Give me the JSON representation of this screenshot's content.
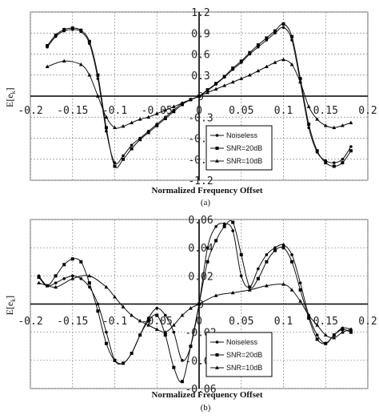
{
  "chart_data": [
    {
      "panel": "top",
      "type": "line",
      "caption": "(a)",
      "xlabel": "Normalized Frequency Offset",
      "ylabel": "E[e",
      "ylabel_sub": "k",
      "ylabel_close": "]",
      "xlim": [
        -0.2,
        0.2
      ],
      "ylim": [
        -1.2,
        1.2
      ],
      "x_ticks": [
        "-0.2",
        "-0.15",
        "-0.1",
        "-0.05",
        "0",
        "0.05",
        "0.1",
        "0.15",
        "0.2"
      ],
      "y_ticks": [
        "1.2",
        "0.9",
        "0.6",
        "0.3",
        "0",
        "-0.3",
        "-0.6",
        "-0.9",
        "-1.2"
      ],
      "grid": true,
      "legend": "lower-right",
      "series": [
        {
          "name": "Noiseless",
          "marker": "circle",
          "x": [
            -0.18,
            -0.17,
            -0.16,
            -0.15,
            -0.14,
            -0.13,
            -0.12,
            -0.11,
            -0.1,
            -0.09,
            -0.08,
            -0.07,
            -0.06,
            -0.05,
            -0.04,
            -0.03,
            -0.02,
            -0.01,
            0,
            0.01,
            0.02,
            0.03,
            0.04,
            0.05,
            0.06,
            0.07,
            0.08,
            0.09,
            0.1,
            0.11,
            0.12,
            0.13,
            0.14,
            0.15,
            0.16,
            0.17,
            0.18
          ],
          "y": [
            0.7,
            0.85,
            0.93,
            0.95,
            0.92,
            0.75,
            0.25,
            -0.5,
            -0.95,
            -0.85,
            -0.7,
            -0.6,
            -0.5,
            -0.4,
            -0.3,
            -0.2,
            -0.1,
            -0.05,
            0,
            0.08,
            0.17,
            0.27,
            0.38,
            0.48,
            0.6,
            0.7,
            0.8,
            0.9,
            0.98,
            0.8,
            0.2,
            -0.45,
            -0.8,
            -0.92,
            -0.95,
            -0.9,
            -0.72
          ]
        },
        {
          "name": "SNR=20dB",
          "marker": "square",
          "x": [
            -0.18,
            -0.17,
            -0.16,
            -0.15,
            -0.14,
            -0.13,
            -0.12,
            -0.11,
            -0.1,
            -0.09,
            -0.08,
            -0.07,
            -0.06,
            -0.05,
            -0.04,
            -0.03,
            -0.02,
            -0.01,
            0,
            0.01,
            0.02,
            0.03,
            0.04,
            0.05,
            0.06,
            0.07,
            0.08,
            0.09,
            0.1,
            0.11,
            0.12,
            0.13,
            0.14,
            0.15,
            0.16,
            0.17,
            0.18
          ],
          "y": [
            0.72,
            0.87,
            0.95,
            0.97,
            0.94,
            0.78,
            0.3,
            -0.45,
            -1.0,
            -0.9,
            -0.75,
            -0.62,
            -0.52,
            -0.42,
            -0.32,
            -0.22,
            -0.12,
            -0.05,
            0,
            0.09,
            0.18,
            0.28,
            0.4,
            0.5,
            0.62,
            0.73,
            0.83,
            0.93,
            1.03,
            0.85,
            0.25,
            -0.4,
            -0.78,
            -0.95,
            -1.0,
            -0.95,
            -0.78
          ]
        },
        {
          "name": "SNR=10dB",
          "marker": "triangle",
          "x": [
            -0.18,
            -0.16,
            -0.14,
            -0.13,
            -0.12,
            -0.11,
            -0.1,
            -0.09,
            -0.08,
            -0.07,
            -0.06,
            -0.05,
            -0.04,
            -0.03,
            -0.02,
            -0.01,
            0,
            0.01,
            0.02,
            0.03,
            0.04,
            0.05,
            0.06,
            0.07,
            0.08,
            0.09,
            0.1,
            0.11,
            0.12,
            0.13,
            0.14,
            0.15,
            0.16,
            0.17,
            0.18
          ],
          "y": [
            0.42,
            0.5,
            0.45,
            0.3,
            0.0,
            -0.3,
            -0.45,
            -0.43,
            -0.38,
            -0.33,
            -0.3,
            -0.25,
            -0.2,
            -0.15,
            -0.1,
            -0.05,
            0,
            0.05,
            0.1,
            0.15,
            0.2,
            0.25,
            0.3,
            0.36,
            0.42,
            0.48,
            0.52,
            0.45,
            0.2,
            -0.15,
            -0.33,
            -0.42,
            -0.45,
            -0.42,
            -0.38
          ]
        }
      ]
    },
    {
      "panel": "bottom",
      "type": "line",
      "caption": "(b)",
      "xlabel": "Normalized Frequency Offset",
      "ylabel": "E[e",
      "ylabel_sub": "k",
      "ylabel_close": "]",
      "xlim": [
        -0.2,
        0.2
      ],
      "ylim": [
        -0.06,
        0.06
      ],
      "x_ticks": [
        "-0.2",
        "-0.15",
        "-0.1",
        "-0.05",
        "0",
        "0.05",
        "0.1",
        "0.15",
        "0.2"
      ],
      "y_ticks": [
        "0.06",
        "0.04",
        "0.02",
        "0",
        "-0.02",
        "-0.04",
        "-0.06"
      ],
      "grid": true,
      "legend": "lower-right",
      "series": [
        {
          "name": "Noiseless",
          "marker": "circle",
          "x": [
            -0.19,
            -0.18,
            -0.17,
            -0.16,
            -0.15,
            -0.14,
            -0.13,
            -0.12,
            -0.11,
            -0.1,
            -0.09,
            -0.08,
            -0.07,
            -0.06,
            -0.05,
            -0.04,
            -0.03,
            -0.02,
            -0.01,
            0,
            0.01,
            0.02,
            0.03,
            0.04,
            0.05,
            0.06,
            0.07,
            0.08,
            0.09,
            0.1,
            0.11,
            0.12,
            0.13,
            0.14,
            0.15,
            0.16,
            0.17,
            0.18
          ],
          "y": [
            0.02,
            0.013,
            0.015,
            0.018,
            0.02,
            0.018,
            0.012,
            0.0,
            -0.02,
            -0.04,
            -0.042,
            -0.035,
            -0.022,
            -0.01,
            -0.003,
            -0.008,
            -0.02,
            -0.04,
            -0.03,
            0.0,
            0.04,
            0.055,
            0.057,
            0.052,
            0.02,
            0.012,
            0.025,
            0.035,
            0.04,
            0.042,
            0.035,
            0.015,
            -0.008,
            -0.022,
            -0.028,
            -0.022,
            -0.017,
            -0.018
          ]
        },
        {
          "name": "SNR=20dB",
          "marker": "square",
          "x": [
            -0.19,
            -0.18,
            -0.17,
            -0.16,
            -0.15,
            -0.14,
            -0.13,
            -0.12,
            -0.11,
            -0.1,
            -0.09,
            -0.08,
            -0.07,
            -0.06,
            -0.05,
            -0.04,
            -0.03,
            -0.02,
            -0.01,
            0,
            0.01,
            0.02,
            0.03,
            0.04,
            0.05,
            0.06,
            0.07,
            0.08,
            0.09,
            0.1,
            0.11,
            0.12,
            0.13,
            0.14,
            0.15,
            0.16,
            0.17,
            0.18
          ],
          "y": [
            0.019,
            0.013,
            0.02,
            0.028,
            0.032,
            0.03,
            0.015,
            -0.005,
            -0.028,
            -0.04,
            -0.042,
            -0.035,
            -0.022,
            -0.012,
            -0.008,
            -0.022,
            -0.045,
            -0.055,
            -0.03,
            0.0,
            0.03,
            0.045,
            0.055,
            0.058,
            0.035,
            0.012,
            0.018,
            0.03,
            0.038,
            0.04,
            0.03,
            0.01,
            -0.01,
            -0.025,
            -0.028,
            -0.022,
            -0.018,
            -0.02
          ]
        },
        {
          "name": "SNR=10dB",
          "marker": "triangle",
          "x": [
            -0.19,
            -0.17,
            -0.15,
            -0.13,
            -0.11,
            -0.1,
            -0.09,
            -0.08,
            -0.07,
            -0.06,
            -0.05,
            -0.04,
            -0.03,
            -0.02,
            -0.01,
            0,
            0.02,
            0.04,
            0.06,
            0.08,
            0.1,
            0.11,
            0.12,
            0.13,
            0.14,
            0.15,
            0.16,
            0.17,
            0.18
          ],
          "y": [
            0.015,
            0.012,
            0.018,
            0.02,
            0.012,
            0.005,
            -0.002,
            -0.008,
            -0.012,
            -0.015,
            -0.018,
            -0.02,
            -0.015,
            -0.008,
            -0.003,
            0.0,
            0.006,
            0.008,
            0.01,
            0.013,
            0.014,
            0.01,
            0.002,
            -0.008,
            -0.015,
            -0.022,
            -0.024,
            -0.02,
            -0.018
          ]
        }
      ]
    }
  ]
}
